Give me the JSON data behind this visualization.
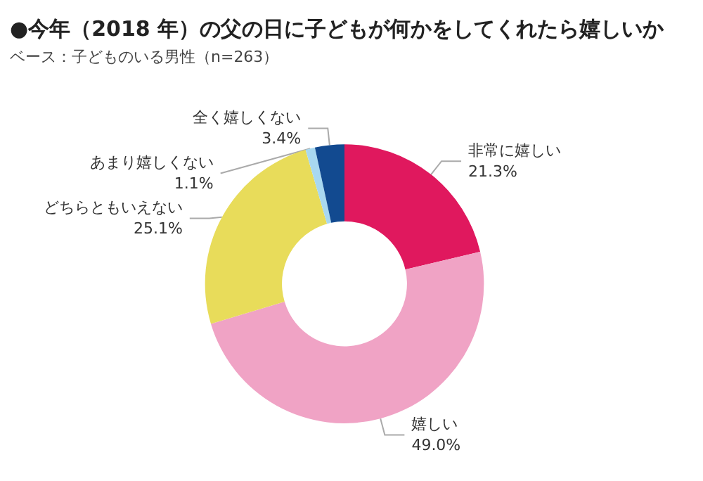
{
  "chart_data": {
    "type": "donut",
    "title": "●今年（2018 年）の父の日に子どもが何かをしてくれたら嬉しいか",
    "subtitle": "ベース：子どものいる男性（n=263）",
    "categories": [
      "非常に嬉しい",
      "嬉しい",
      "どちらともいえない",
      "あまり嬉しくない",
      "全く嬉しくない"
    ],
    "values": [
      21.3,
      49.0,
      25.1,
      1.1,
      3.4
    ],
    "value_labels": [
      "21.3%",
      "49.0%",
      "25.1%",
      "1.1%",
      "3.4%"
    ],
    "colors": [
      "#e0185e",
      "#f0a3c5",
      "#e8dc5a",
      "#a8d8f0",
      "#124a90"
    ],
    "legend": false
  }
}
